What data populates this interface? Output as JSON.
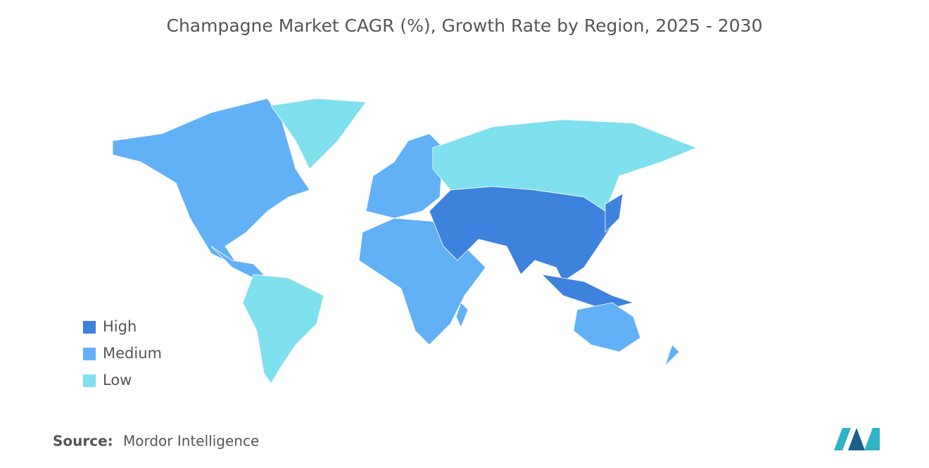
{
  "title": "Champagne Market CAGR (%), Growth Rate by Region, 2025 - 2030",
  "legend": [
    {
      "label": "High",
      "color": "#3d82dc"
    },
    {
      "label": "Medium",
      "color": "#62b1f6"
    },
    {
      "label": "Low",
      "color": "#7fe0ee"
    }
  ],
  "source": {
    "label": "Source:",
    "text": "Mordor Intelligence"
  }
}
